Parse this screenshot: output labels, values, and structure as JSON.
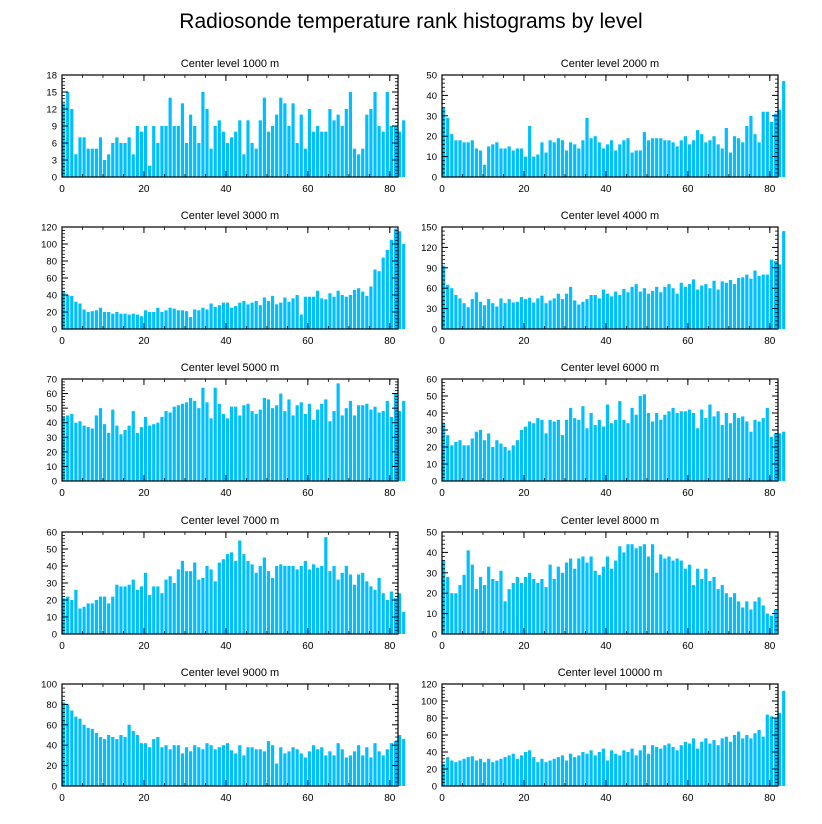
{
  "title": "Radiosonde temperature rank histograms by level",
  "colors": {
    "bar": "#00BFFF",
    "axis": "#000000"
  },
  "chart_data": [
    {
      "type": "bar",
      "title": "Center level 1000 m",
      "xlim": [
        0,
        82
      ],
      "ylim": [
        0,
        18
      ],
      "xticks": [
        0,
        20,
        40,
        60,
        80
      ],
      "yticks": [
        0,
        3,
        6,
        9,
        12,
        15,
        18
      ],
      "values": [
        13,
        15,
        12,
        4,
        7,
        7,
        5,
        5,
        5,
        7,
        3,
        4,
        6,
        7,
        6,
        6,
        7,
        4,
        9,
        8,
        9,
        2,
        9,
        6,
        9,
        9,
        14,
        9,
        9,
        13,
        6,
        11,
        9,
        6,
        15,
        12,
        5,
        9,
        10,
        8,
        6,
        7,
        8,
        10,
        4,
        10,
        6,
        5,
        10,
        14,
        8,
        9,
        11,
        14,
        13,
        9,
        13,
        6,
        11,
        5,
        12,
        8,
        9,
        8,
        8,
        12,
        10,
        11,
        9,
        12,
        15,
        5,
        4,
        5,
        11,
        12,
        15,
        9,
        8,
        15,
        9,
        9,
        8,
        10
      ]
    },
    {
      "type": "bar",
      "title": "Center level 2000 m",
      "xlim": [
        0,
        82
      ],
      "ylim": [
        0,
        50
      ],
      "xticks": [
        0,
        20,
        40,
        60,
        80
      ],
      "yticks": [
        0,
        10,
        20,
        30,
        40,
        50
      ],
      "values": [
        34,
        29,
        21,
        18,
        18,
        17,
        17,
        18,
        14,
        13,
        6,
        15,
        16,
        17,
        14,
        14,
        15,
        13,
        14,
        14,
        10,
        25,
        10,
        11,
        17,
        12,
        18,
        17,
        19,
        18,
        13,
        17,
        16,
        14,
        18,
        29,
        19,
        20,
        17,
        14,
        16,
        18,
        13,
        16,
        18,
        19,
        12,
        13,
        13,
        22,
        18,
        19,
        19,
        19,
        18,
        18,
        17,
        15,
        18,
        20,
        16,
        18,
        23,
        21,
        17,
        18,
        20,
        16,
        14,
        24,
        12,
        20,
        19,
        17,
        25,
        30,
        21,
        17,
        32,
        32,
        27,
        31,
        33,
        47
      ]
    },
    {
      "type": "bar",
      "title": "Center level 3000 m",
      "xlim": [
        0,
        82
      ],
      "ylim": [
        0,
        120
      ],
      "xticks": [
        0,
        20,
        40,
        60,
        80
      ],
      "yticks": [
        0,
        20,
        40,
        60,
        80,
        100,
        120
      ],
      "values": [
        44,
        40,
        39,
        32,
        30,
        23,
        20,
        21,
        22,
        25,
        20,
        20,
        18,
        20,
        18,
        18,
        17,
        18,
        17,
        15,
        22,
        20,
        20,
        25,
        20,
        22,
        25,
        24,
        22,
        22,
        21,
        14,
        23,
        22,
        25,
        23,
        30,
        26,
        28,
        31,
        31,
        25,
        27,
        31,
        33,
        29,
        31,
        33,
        28,
        37,
        33,
        39,
        29,
        31,
        37,
        32,
        36,
        40,
        17,
        38,
        38,
        38,
        45,
        36,
        35,
        42,
        38,
        45,
        40,
        38,
        40,
        46,
        48,
        44,
        39,
        50,
        70,
        68,
        84,
        93,
        105,
        118,
        115,
        100
      ]
    },
    {
      "type": "bar",
      "title": "Center level 4000 m",
      "xlim": [
        0,
        82
      ],
      "ylim": [
        0,
        150
      ],
      "xticks": [
        0,
        20,
        40,
        60,
        80
      ],
      "yticks": [
        0,
        30,
        60,
        90,
        120,
        150
      ],
      "values": [
        93,
        65,
        60,
        50,
        45,
        38,
        32,
        44,
        54,
        40,
        35,
        44,
        38,
        33,
        45,
        38,
        44,
        39,
        40,
        47,
        44,
        46,
        39,
        45,
        49,
        38,
        42,
        45,
        52,
        44,
        52,
        62,
        42,
        36,
        40,
        44,
        50,
        50,
        45,
        58,
        52,
        48,
        55,
        50,
        59,
        54,
        62,
        66,
        55,
        60,
        52,
        56,
        62,
        54,
        62,
        66,
        60,
        52,
        68,
        62,
        66,
        73,
        58,
        64,
        66,
        60,
        71,
        58,
        70,
        68,
        72,
        66,
        75,
        76,
        80,
        74,
        86,
        78,
        80,
        80,
        102,
        100,
        95,
        144
      ]
    },
    {
      "type": "bar",
      "title": "Center level 5000 m",
      "xlim": [
        0,
        82
      ],
      "ylim": [
        0,
        70
      ],
      "xticks": [
        0,
        20,
        40,
        60,
        80
      ],
      "yticks": [
        0,
        10,
        20,
        30,
        40,
        50,
        60,
        70
      ],
      "values": [
        44,
        45,
        46,
        40,
        41,
        38,
        37,
        36,
        45,
        50,
        39,
        33,
        49,
        38,
        32,
        35,
        38,
        48,
        33,
        37,
        44,
        38,
        39,
        40,
        44,
        48,
        47,
        51,
        52,
        53,
        54,
        57,
        55,
        50,
        64,
        54,
        43,
        64,
        53,
        46,
        43,
        51,
        51,
        45,
        52,
        53,
        48,
        46,
        49,
        57,
        56,
        50,
        52,
        60,
        48,
        56,
        45,
        52,
        54,
        46,
        53,
        42,
        49,
        53,
        56,
        41,
        48,
        67,
        45,
        50,
        55,
        45,
        52,
        52,
        53,
        49,
        51,
        47,
        48,
        55,
        44,
        60,
        48,
        55
      ]
    },
    {
      "type": "bar",
      "title": "Center level 6000 m",
      "xlim": [
        0,
        82
      ],
      "ylim": [
        0,
        60
      ],
      "xticks": [
        0,
        20,
        40,
        60,
        80
      ],
      "yticks": [
        0,
        10,
        20,
        30,
        40,
        50,
        60
      ],
      "values": [
        34,
        27,
        21,
        23,
        24,
        21,
        21,
        25,
        29,
        30,
        24,
        28,
        20,
        24,
        22,
        20,
        18,
        21,
        24,
        30,
        32,
        35,
        34,
        37,
        36,
        28,
        36,
        35,
        36,
        27,
        36,
        43,
        37,
        36,
        44,
        31,
        40,
        33,
        36,
        32,
        45,
        34,
        36,
        47,
        36,
        34,
        43,
        39,
        50,
        51,
        40,
        35,
        40,
        36,
        39,
        41,
        43,
        40,
        41,
        41,
        42,
        40,
        31,
        42,
        37,
        45,
        38,
        41,
        33,
        40,
        34,
        40,
        37,
        38,
        35,
        29,
        36,
        35,
        37,
        43,
        26,
        28,
        28,
        29
      ]
    },
    {
      "type": "bar",
      "title": "Center level 7000 m",
      "xlim": [
        0,
        82
      ],
      "ylim": [
        0,
        60
      ],
      "xticks": [
        0,
        20,
        40,
        60,
        80
      ],
      "yticks": [
        0,
        10,
        20,
        30,
        40,
        50,
        60
      ],
      "values": [
        21,
        22,
        20,
        26,
        15,
        16,
        18,
        18,
        20,
        22,
        22,
        18,
        22,
        29,
        28,
        28,
        29,
        32,
        26,
        28,
        36,
        23,
        28,
        28,
        24,
        32,
        34,
        30,
        38,
        43,
        37,
        37,
        42,
        32,
        33,
        40,
        38,
        31,
        42,
        44,
        47,
        48,
        43,
        55,
        47,
        43,
        41,
        36,
        40,
        45,
        37,
        33,
        40,
        41,
        40,
        40,
        40,
        38,
        40,
        43,
        38,
        41,
        39,
        40,
        57,
        37,
        40,
        32,
        36,
        40,
        35,
        29,
        35,
        36,
        31,
        28,
        26,
        33,
        24,
        20,
        25,
        21,
        24,
        13
      ]
    },
    {
      "type": "bar",
      "title": "Center level 8000 m",
      "xlim": [
        0,
        82
      ],
      "ylim": [
        0,
        50
      ],
      "xticks": [
        0,
        20,
        40,
        60,
        80
      ],
      "yticks": [
        0,
        10,
        20,
        30,
        40,
        50
      ],
      "values": [
        36,
        28,
        20,
        20,
        24,
        29,
        41,
        34,
        22,
        28,
        24,
        33,
        27,
        26,
        31,
        16,
        22,
        25,
        28,
        25,
        28,
        30,
        27,
        25,
        27,
        23,
        34,
        27,
        33,
        30,
        35,
        37,
        32,
        37,
        38,
        35,
        38,
        31,
        29,
        33,
        38,
        32,
        36,
        43,
        40,
        44,
        44,
        42,
        43,
        44,
        38,
        44,
        30,
        39,
        37,
        38,
        36,
        37,
        36,
        32,
        34,
        24,
        32,
        27,
        32,
        26,
        28,
        22,
        24,
        20,
        18,
        20,
        16,
        13,
        16,
        12,
        16,
        18,
        14,
        10,
        9,
        12
      ]
    },
    {
      "type": "bar",
      "title": "Center level 9000 m",
      "xlim": [
        0,
        82
      ],
      "ylim": [
        0,
        100
      ],
      "xticks": [
        0,
        20,
        40,
        60,
        80
      ],
      "yticks": [
        0,
        20,
        40,
        60,
        80,
        100
      ],
      "values": [
        82,
        80,
        74,
        68,
        66,
        60,
        57,
        56,
        52,
        48,
        46,
        50,
        48,
        46,
        50,
        48,
        60,
        54,
        50,
        42,
        42,
        38,
        46,
        48,
        38,
        40,
        36,
        40,
        40,
        32,
        38,
        34,
        40,
        38,
        36,
        42,
        40,
        36,
        38,
        40,
        42,
        35,
        32,
        40,
        30,
        38,
        38,
        36,
        36,
        34,
        44,
        40,
        22,
        38,
        32,
        34,
        38,
        36,
        32,
        28,
        34,
        40,
        36,
        38,
        30,
        34,
        30,
        42,
        36,
        28,
        30,
        34,
        40,
        30,
        38,
        28,
        42,
        34,
        30,
        36,
        42,
        44,
        50,
        46
      ]
    },
    {
      "type": "bar",
      "title": "Center level 10000 m",
      "xlim": [
        0,
        82
      ],
      "ylim": [
        0,
        120
      ],
      "xticks": [
        0,
        20,
        40,
        60,
        80
      ],
      "yticks": [
        0,
        20,
        40,
        60,
        80,
        100,
        120
      ],
      "values": [
        26,
        34,
        30,
        28,
        30,
        32,
        34,
        35,
        30,
        32,
        28,
        32,
        28,
        30,
        32,
        34,
        36,
        38,
        32,
        36,
        40,
        42,
        34,
        28,
        32,
        28,
        30,
        32,
        34,
        36,
        30,
        38,
        34,
        36,
        40,
        38,
        42,
        36,
        40,
        44,
        30,
        42,
        38,
        36,
        42,
        40,
        44,
        36,
        42,
        48,
        38,
        48,
        46,
        44,
        48,
        50,
        46,
        42,
        48,
        52,
        50,
        56,
        44,
        52,
        56,
        50,
        54,
        48,
        56,
        58,
        52,
        60,
        64,
        56,
        60,
        56,
        62,
        66,
        58,
        84,
        82,
        80,
        86,
        112
      ]
    }
  ]
}
